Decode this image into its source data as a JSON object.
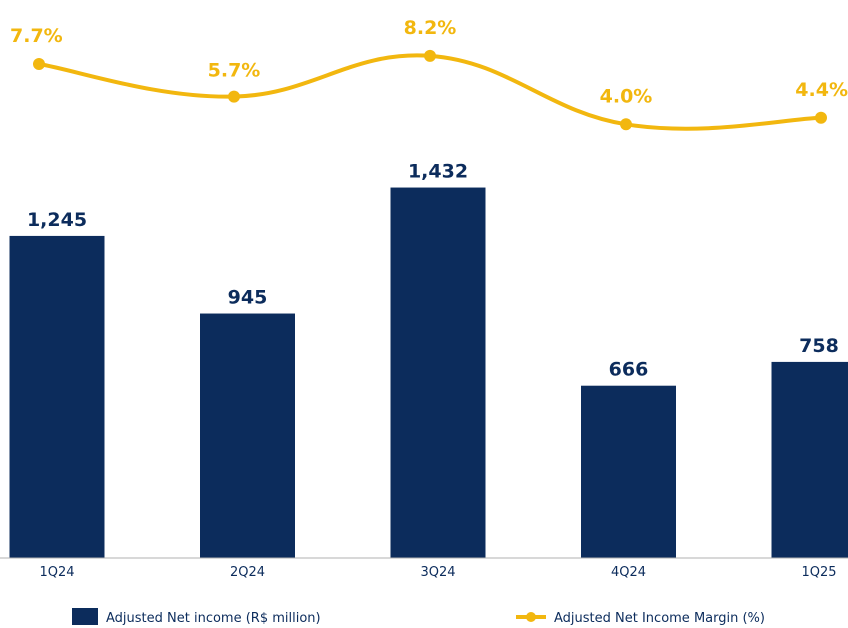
{
  "chart_data": {
    "type": "bar",
    "categories": [
      "1Q24",
      "2Q24",
      "3Q24",
      "4Q24",
      "1Q25"
    ],
    "series": [
      {
        "name": "Adjusted Net income (R$ million)",
        "type": "bar",
        "values": [
          1245,
          945,
          1432,
          666,
          758
        ],
        "labels": [
          "1,245",
          "945",
          "1,432",
          "666",
          "758"
        ],
        "color": "#0c2c5c"
      },
      {
        "name": "Adjusted Net Income Margin (%)",
        "type": "line",
        "values": [
          7.7,
          5.7,
          8.2,
          4.0,
          4.4
        ],
        "labels": [
          "7.7%",
          "5.7%",
          "8.2%",
          "4.0%",
          "4.4%"
        ],
        "color": "#f2b70f"
      }
    ],
    "title": "",
    "xlabel": "",
    "ylabel": "",
    "grid": false,
    "legend_position": "bottom"
  },
  "colors": {
    "label_bar": "#0c2c5c",
    "label_line": "#f2b70f",
    "tick": "#0c2c5c",
    "axis": "#b0b0b0"
  }
}
